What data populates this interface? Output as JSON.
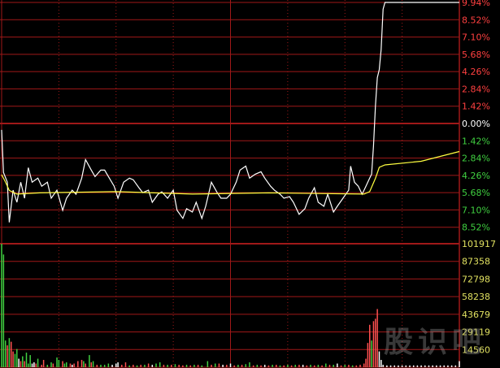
{
  "chart_data": {
    "type": "line",
    "title": "",
    "x_range_minutes": [
      0,
      240
    ],
    "price_axis": {
      "ylim_pct": [
        -9.94,
        9.94
      ],
      "tick_values": [
        9.94,
        8.52,
        7.1,
        5.68,
        4.26,
        2.84,
        1.42,
        0.0,
        -1.42,
        -2.84,
        -4.26,
        -5.68,
        -7.1,
        -8.52
      ],
      "tick_labels": [
        "9.94%",
        "8.52%",
        "7.10%",
        "5.68%",
        "4.26%",
        "2.84%",
        "1.42%",
        "0.00%",
        "1.42%",
        "2.84%",
        "4.26%",
        "5.68%",
        "7.10%",
        "8.52%"
      ],
      "up_color": "#ff4040",
      "zero_color": "#ffffff",
      "down_color": "#40d040"
    },
    "volume_axis": {
      "ylim": [
        0,
        101917
      ],
      "tick_values": [
        101917,
        87358,
        72798,
        58238,
        43679,
        29119,
        14560
      ],
      "tick_labels": [
        "101917",
        "87358",
        "72798",
        "58238",
        "43679",
        "29119",
        "14560"
      ],
      "label_color": "#e0e060"
    },
    "grid": true,
    "grid_color": "#a01818",
    "series": [
      {
        "key": "price",
        "color": "#ffffff",
        "points": [
          [
            0,
            -0.53
          ],
          [
            1,
            -4.03
          ],
          [
            3,
            -4.82
          ],
          [
            4,
            -8.12
          ],
          [
            6,
            -5.48
          ],
          [
            8,
            -6.47
          ],
          [
            10,
            -4.82
          ],
          [
            12,
            -6.14
          ],
          [
            14,
            -3.63
          ],
          [
            16,
            -4.82
          ],
          [
            19,
            -4.49
          ],
          [
            21,
            -5.15
          ],
          [
            24,
            -4.82
          ],
          [
            26,
            -6.14
          ],
          [
            29,
            -5.48
          ],
          [
            32,
            -7.13
          ],
          [
            34,
            -6.14
          ],
          [
            37,
            -5.48
          ],
          [
            39,
            -5.81
          ],
          [
            42,
            -4.49
          ],
          [
            44,
            -2.97
          ],
          [
            47,
            -3.83
          ],
          [
            49,
            -4.36
          ],
          [
            52,
            -3.83
          ],
          [
            54,
            -3.83
          ],
          [
            56,
            -4.36
          ],
          [
            59,
            -5.15
          ],
          [
            61,
            -6.14
          ],
          [
            64,
            -4.82
          ],
          [
            67,
            -4.49
          ],
          [
            69,
            -4.62
          ],
          [
            72,
            -5.28
          ],
          [
            74,
            -5.68
          ],
          [
            77,
            -5.48
          ],
          [
            79,
            -6.47
          ],
          [
            82,
            -5.81
          ],
          [
            84,
            -5.61
          ],
          [
            87,
            -6.14
          ],
          [
            90,
            -5.48
          ],
          [
            92,
            -7.13
          ],
          [
            95,
            -7.79
          ],
          [
            97,
            -7.0
          ],
          [
            100,
            -7.27
          ],
          [
            102,
            -6.47
          ],
          [
            105,
            -7.79
          ],
          [
            107,
            -6.8
          ],
          [
            110,
            -4.82
          ],
          [
            113,
            -5.68
          ],
          [
            115,
            -6.14
          ],
          [
            118,
            -6.14
          ],
          [
            120,
            -5.81
          ],
          [
            123,
            -4.82
          ],
          [
            125,
            -3.83
          ],
          [
            128,
            -3.5
          ],
          [
            130,
            -4.49
          ],
          [
            133,
            -4.16
          ],
          [
            136,
            -3.96
          ],
          [
            138,
            -4.49
          ],
          [
            141,
            -5.15
          ],
          [
            143,
            -5.48
          ],
          [
            146,
            -5.81
          ],
          [
            148,
            -6.14
          ],
          [
            151,
            -6.01
          ],
          [
            153,
            -6.47
          ],
          [
            156,
            -7.46
          ],
          [
            159,
            -7.0
          ],
          [
            161,
            -6.14
          ],
          [
            164,
            -5.28
          ],
          [
            166,
            -6.47
          ],
          [
            169,
            -6.8
          ],
          [
            171,
            -5.81
          ],
          [
            174,
            -7.27
          ],
          [
            176,
            -6.8
          ],
          [
            179,
            -6.14
          ],
          [
            182,
            -5.48
          ],
          [
            183,
            -3.5
          ],
          [
            185,
            -4.82
          ],
          [
            187,
            -5.15
          ],
          [
            189,
            -5.81
          ],
          [
            191,
            -5.15
          ],
          [
            193,
            -4.49
          ],
          [
            194,
            -4.16
          ],
          [
            195,
            -1.85
          ],
          [
            196,
            1.45
          ],
          [
            197,
            3.76
          ],
          [
            198,
            4.43
          ],
          [
            199,
            6.08
          ],
          [
            200,
            9.38
          ],
          [
            201,
            9.94
          ],
          [
            240,
            9.94
          ]
        ]
      },
      {
        "key": "average",
        "color": "#ffff40",
        "points": [
          [
            0,
            -4.2
          ],
          [
            2,
            -4.8
          ],
          [
            4,
            -5.5
          ],
          [
            8,
            -5.8
          ],
          [
            20,
            -5.7
          ],
          [
            60,
            -5.6
          ],
          [
            100,
            -5.8
          ],
          [
            140,
            -5.7
          ],
          [
            190,
            -5.8
          ],
          [
            193,
            -5.6
          ],
          [
            196,
            -4.5
          ],
          [
            198,
            -3.6
          ],
          [
            201,
            -3.4
          ],
          [
            220,
            -3.1
          ],
          [
            240,
            -2.3
          ]
        ]
      }
    ],
    "volume": {
      "colors": {
        "up": "#ff5050",
        "down": "#40d040",
        "flat": "#ffffff"
      },
      "bars": [
        [
          0,
          101917,
          "down"
        ],
        [
          1,
          93000,
          "down"
        ],
        [
          2,
          22000,
          "down"
        ],
        [
          3,
          18000,
          "red"
        ],
        [
          4,
          24000,
          "down"
        ],
        [
          5,
          21000,
          "up"
        ],
        [
          6,
          13000,
          "up"
        ],
        [
          7,
          11000,
          "down"
        ],
        [
          8,
          15000,
          "down"
        ],
        [
          9,
          7000,
          "flat"
        ],
        [
          10,
          5000,
          "up"
        ],
        [
          11,
          9000,
          "down"
        ],
        [
          12,
          5000,
          "up"
        ],
        [
          13,
          12000,
          "down"
        ],
        [
          14,
          3000,
          "down"
        ],
        [
          15,
          10000,
          "down"
        ],
        [
          16,
          3000,
          "flat"
        ],
        [
          17,
          4000,
          "flat"
        ],
        [
          18,
          3000,
          "up"
        ],
        [
          19,
          7000,
          "down"
        ],
        [
          21,
          2000,
          "up"
        ],
        [
          22,
          6000,
          "up"
        ],
        [
          24,
          2000,
          "down"
        ],
        [
          26,
          4000,
          "down"
        ],
        [
          27,
          3000,
          "up"
        ],
        [
          29,
          8000,
          "down"
        ],
        [
          30,
          6000,
          "down"
        ],
        [
          32,
          5000,
          "up"
        ],
        [
          33,
          3000,
          "down"
        ],
        [
          34,
          4000,
          "down"
        ],
        [
          36,
          3000,
          "up"
        ],
        [
          37,
          2000,
          "flat"
        ],
        [
          38,
          3000,
          "up"
        ],
        [
          40,
          5000,
          "up"
        ],
        [
          42,
          6000,
          "up"
        ],
        [
          43,
          5000,
          "down"
        ],
        [
          44,
          3000,
          "up"
        ],
        [
          46,
          10000,
          "down"
        ],
        [
          47,
          4000,
          "up"
        ],
        [
          48,
          5000,
          "down"
        ],
        [
          50,
          2000,
          "up"
        ],
        [
          52,
          2000,
          "down"
        ],
        [
          54,
          2000,
          "down"
        ],
        [
          56,
          3000,
          "down"
        ],
        [
          58,
          2000,
          "flat"
        ],
        [
          60,
          3000,
          "flat"
        ],
        [
          61,
          4000,
          "flat"
        ],
        [
          63,
          2000,
          "up"
        ],
        [
          65,
          4000,
          "up"
        ],
        [
          67,
          1500,
          "down"
        ],
        [
          69,
          2000,
          "up"
        ],
        [
          71,
          1500,
          "down"
        ],
        [
          73,
          2000,
          "up"
        ],
        [
          75,
          2000,
          "down"
        ],
        [
          77,
          3000,
          "up"
        ],
        [
          79,
          2000,
          "flat"
        ],
        [
          81,
          3000,
          "down"
        ],
        [
          83,
          4000,
          "down"
        ],
        [
          85,
          2000,
          "up"
        ],
        [
          87,
          2000,
          "down"
        ],
        [
          89,
          2000,
          "up"
        ],
        [
          91,
          2500,
          "down"
        ],
        [
          93,
          2000,
          "up"
        ],
        [
          95,
          1500,
          "up"
        ],
        [
          97,
          2000,
          "down"
        ],
        [
          99,
          1500,
          "up"
        ],
        [
          101,
          2000,
          "down"
        ],
        [
          103,
          2000,
          "up"
        ],
        [
          105,
          1500,
          "down"
        ],
        [
          108,
          5000,
          "down"
        ],
        [
          110,
          2000,
          "up"
        ],
        [
          112,
          3000,
          "down"
        ],
        [
          114,
          3000,
          "up"
        ],
        [
          116,
          2000,
          "flat"
        ],
        [
          118,
          2000,
          "up"
        ],
        [
          120,
          3000,
          "flat"
        ],
        [
          122,
          1500,
          "up"
        ],
        [
          124,
          2000,
          "down"
        ],
        [
          126,
          2000,
          "up"
        ],
        [
          128,
          2500,
          "down"
        ],
        [
          130,
          4000,
          "down"
        ],
        [
          132,
          1500,
          "up"
        ],
        [
          134,
          2000,
          "down"
        ],
        [
          136,
          1500,
          "up"
        ],
        [
          138,
          2000,
          "flat"
        ],
        [
          140,
          1500,
          "up"
        ],
        [
          142,
          2000,
          "down"
        ],
        [
          144,
          2000,
          "up"
        ],
        [
          146,
          1500,
          "down"
        ],
        [
          148,
          1500,
          "up"
        ],
        [
          150,
          2000,
          "down"
        ],
        [
          152,
          1500,
          "up"
        ],
        [
          154,
          2000,
          "down"
        ],
        [
          156,
          2000,
          "up"
        ],
        [
          158,
          2000,
          "flat"
        ],
        [
          160,
          1500,
          "up"
        ],
        [
          162,
          2000,
          "down"
        ],
        [
          164,
          1500,
          "up"
        ],
        [
          166,
          2000,
          "down"
        ],
        [
          168,
          1500,
          "up"
        ],
        [
          170,
          3000,
          "down"
        ],
        [
          172,
          2000,
          "up"
        ],
        [
          174,
          2000,
          "down"
        ],
        [
          176,
          3000,
          "flat"
        ],
        [
          178,
          1500,
          "up"
        ],
        [
          180,
          2000,
          "down"
        ],
        [
          182,
          2000,
          "up"
        ],
        [
          184,
          1500,
          "down"
        ],
        [
          186,
          1500,
          "up"
        ],
        [
          188,
          2000,
          "up"
        ],
        [
          190,
          3000,
          "up"
        ],
        [
          191,
          7000,
          "up"
        ],
        [
          192,
          20000,
          "up"
        ],
        [
          193,
          35000,
          "up"
        ],
        [
          194,
          22000,
          "down"
        ],
        [
          195,
          38000,
          "up"
        ],
        [
          196,
          40000,
          "up"
        ],
        [
          197,
          48000,
          "up"
        ],
        [
          198,
          13000,
          "flat"
        ],
        [
          199,
          6000,
          "flat"
        ],
        [
          200,
          2000,
          "flat"
        ],
        [
          202,
          1500,
          "flat"
        ],
        [
          204,
          1500,
          "flat"
        ],
        [
          206,
          1500,
          "flat"
        ],
        [
          208,
          1500,
          "flat"
        ],
        [
          210,
          1500,
          "flat"
        ],
        [
          212,
          1500,
          "flat"
        ],
        [
          214,
          1500,
          "flat"
        ],
        [
          216,
          1500,
          "flat"
        ],
        [
          218,
          1500,
          "flat"
        ],
        [
          220,
          1500,
          "flat"
        ],
        [
          222,
          1500,
          "flat"
        ],
        [
          224,
          1500,
          "flat"
        ],
        [
          226,
          1500,
          "flat"
        ],
        [
          228,
          1500,
          "flat"
        ],
        [
          230,
          1500,
          "flat"
        ],
        [
          232,
          1500,
          "flat"
        ],
        [
          234,
          1500,
          "flat"
        ],
        [
          236,
          1500,
          "flat"
        ],
        [
          238,
          1500,
          "flat"
        ],
        [
          240,
          5000,
          "flat"
        ]
      ]
    }
  },
  "watermark": "股识吧"
}
